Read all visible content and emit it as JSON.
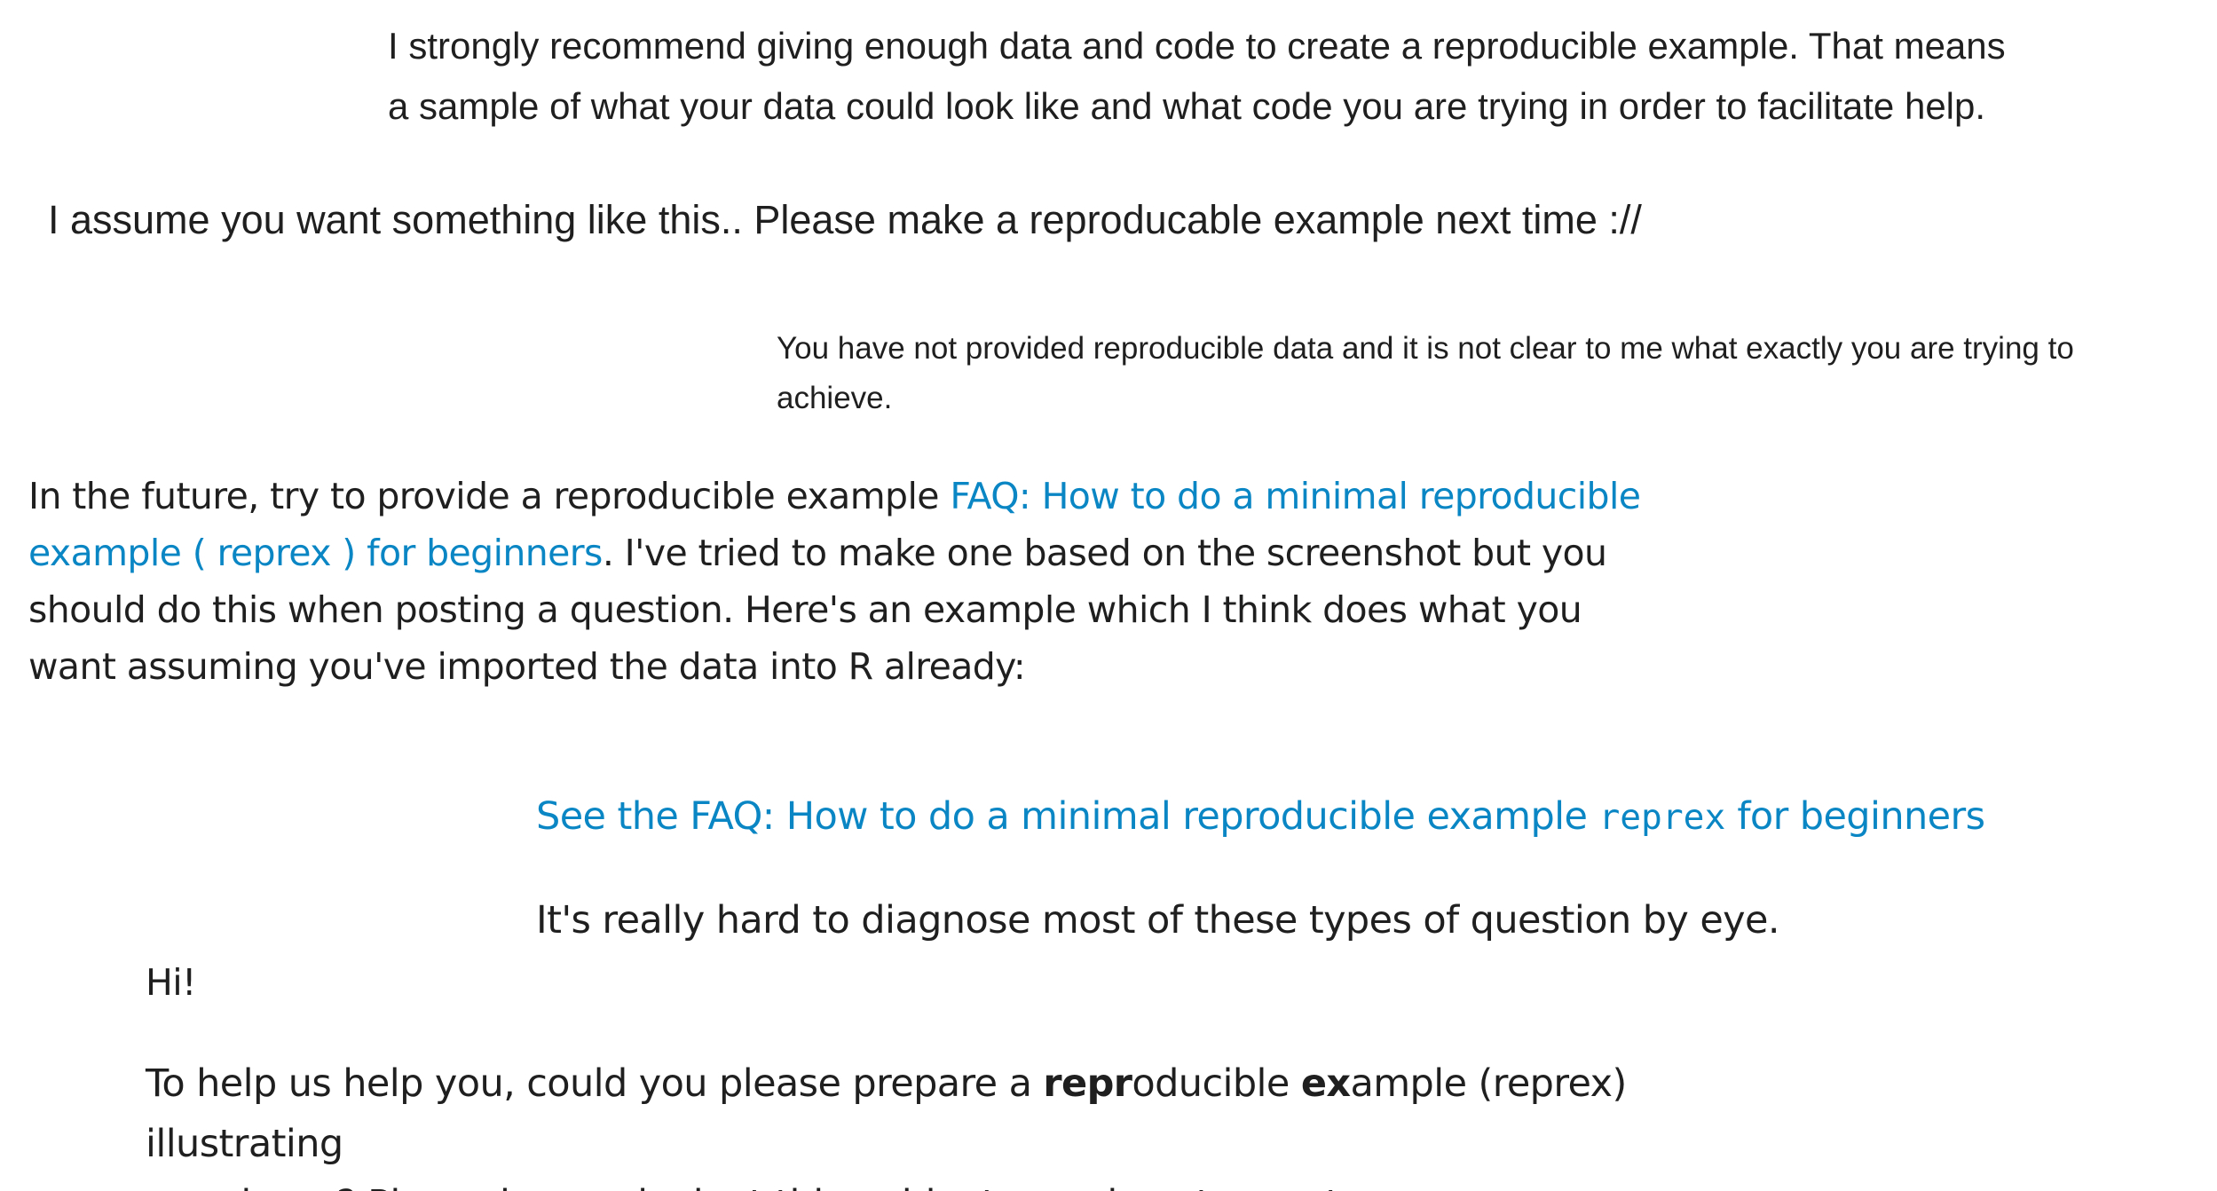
{
  "snippets": {
    "recommend": {
      "line1": "I strongly recommend giving enough data and code to create a reproducible example. That means",
      "line2": "a sample of what your data could look like and what code you are trying in order to facilitate help."
    },
    "assume": {
      "text": "I assume you want something like this.. Please make a reproducable example next time ://"
    },
    "not_provided": {
      "line1": "You have not provided reproducible data and it is not clear to me what exactly you are trying to",
      "line2": "achieve."
    },
    "future": {
      "lead": "In the future, try to provide a reproducible example ",
      "link_part1": "FAQ: How to do a minimal reproducible",
      "link_part2": "example ( reprex ) for beginners",
      "after_link": ". I've tried to make one based on the screenshot but you",
      "line3": "should do this when posting a question. Here's an example which I think does what you",
      "line4": "want assuming you've imported the data into R already:"
    },
    "see_faq": {
      "pre": "See the FAQ: How to do a minimal reproducible example ",
      "code": "reprex",
      "post": " for beginners"
    },
    "diagnose": {
      "text": "It's really hard to diagnose most of these types of question by eye."
    },
    "hi": {
      "text": "Hi!"
    },
    "help_us": {
      "t1": "To help us help you, could you please prepare a ",
      "b1": "repr",
      "t2": "oducible ",
      "b2": "ex",
      "t3": "ample (reprex) illustrating",
      "line2": "your issue? Please have a look at this guide, to see how to create one:"
    }
  },
  "colors": {
    "link": "#0a86c4",
    "text": "#1f1f1f",
    "background": "#ffffff"
  }
}
